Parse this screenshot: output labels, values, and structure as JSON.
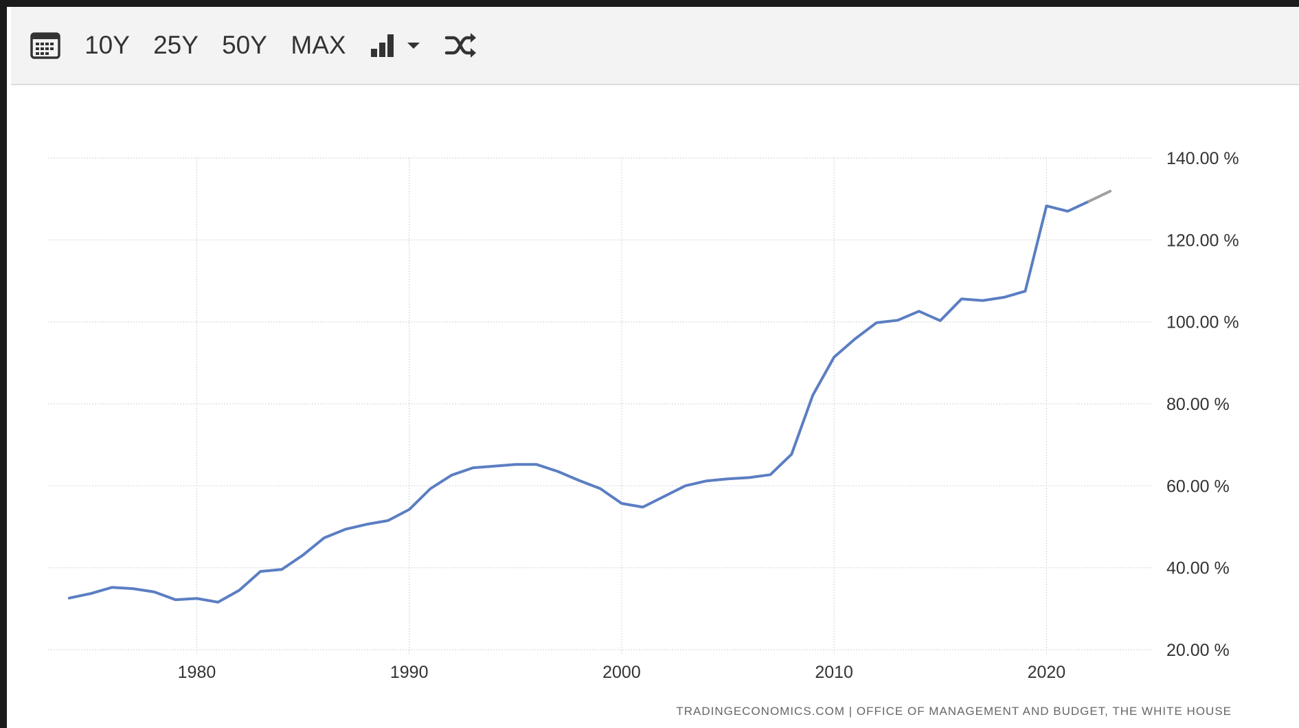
{
  "toolbar": {
    "calendar_icon": "calendar-icon",
    "ranges": [
      "10Y",
      "25Y",
      "50Y",
      "MAX"
    ],
    "chart_type_icon": "bar-chart-icon",
    "dropdown_icon": "caret-down-icon",
    "compare_icon": "shuffle-icon"
  },
  "colors": {
    "line": "#5b7ec2",
    "line_forecast": "#a0a0a0",
    "grid": "#d9d9d9",
    "toolbar_bg": "#f3f3f3",
    "text": "#333333"
  },
  "chart_data": {
    "type": "line",
    "x_ticks": [
      1980,
      1990,
      2000,
      2010,
      2020
    ],
    "y_ticks": [
      20,
      40,
      60,
      80,
      100,
      120,
      140
    ],
    "y_tick_labels": [
      "20.00 %",
      "40.00 %",
      "60.00 %",
      "80.00 %",
      "100.00 %",
      "120.00 %",
      "140.00 %"
    ],
    "xlim": [
      1973,
      2025
    ],
    "ylim": [
      20,
      140
    ],
    "grid": true,
    "series": [
      {
        "x": [
          1974,
          1975,
          1976,
          1977,
          1978,
          1979,
          1980,
          1981,
          1982,
          1983,
          1984,
          1985,
          1986,
          1987,
          1988,
          1989,
          1990,
          1991,
          1992,
          1993,
          1994,
          1995,
          1996,
          1997,
          1998,
          1999,
          2000,
          2001,
          2002,
          2003,
          2004,
          2005,
          2006,
          2007,
          2008,
          2009,
          2010,
          2011,
          2012,
          2013,
          2014,
          2015,
          2016,
          2017,
          2018,
          2019,
          2020,
          2021,
          2022
        ],
        "y": [
          32.6,
          33.7,
          35.2,
          34.9,
          34.1,
          32.2,
          32.5,
          31.6,
          34.5,
          39.1,
          39.6,
          43.1,
          47.3,
          49.4,
          50.6,
          51.5,
          54.2,
          59.3,
          62.6,
          64.4,
          64.8,
          65.2,
          65.2,
          63.5,
          61.3,
          59.3,
          55.7,
          54.8,
          57.4,
          60.0,
          61.2,
          61.7,
          62.0,
          62.7,
          67.7,
          82.1,
          91.4,
          95.9,
          99.8,
          100.4,
          102.6,
          100.3,
          105.6,
          105.2,
          106.0,
          107.5,
          128.3,
          127.0,
          129.4
        ]
      },
      {
        "x": [
          2022,
          2023
        ],
        "y": [
          129.4,
          131.9
        ]
      }
    ]
  },
  "source": "TRADINGECONOMICS.COM  |  OFFICE OF MANAGEMENT AND BUDGET, THE WHITE HOUSE"
}
